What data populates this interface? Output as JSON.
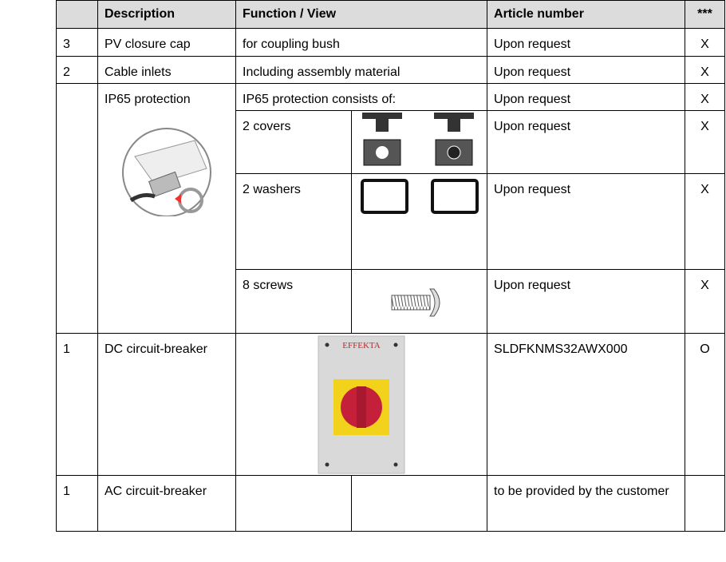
{
  "table": {
    "header": {
      "description": "Description",
      "function": "Function / View",
      "article": "Article number",
      "mark": "***"
    },
    "rows": [
      {
        "qty": "3",
        "description": "PV closure cap",
        "function": "for coupling bush",
        "article": "Upon request",
        "mark": "X"
      },
      {
        "qty": "2",
        "description": "Cable inlets",
        "function": "Including assembly material",
        "article": "Upon request",
        "mark": "X"
      },
      {
        "description": "IP65 protection",
        "function": "IP65 protection consists of:",
        "article": "Upon request",
        "mark": "X"
      },
      {
        "function": "2 covers",
        "article": "Upon request",
        "mark": "X"
      },
      {
        "function": "2 washers",
        "article": "Upon request",
        "mark": "X"
      },
      {
        "function": "8 screws",
        "article": "Upon request",
        "mark": "X"
      },
      {
        "qty": "1",
        "description": "DC circuit-breaker",
        "brand": "EFFEKTA",
        "article": "SLDFKNMS32AWX000",
        "mark": "O"
      },
      {
        "qty": "1",
        "description": "AC circuit-breaker",
        "article": "to be provided by the customer"
      }
    ]
  }
}
